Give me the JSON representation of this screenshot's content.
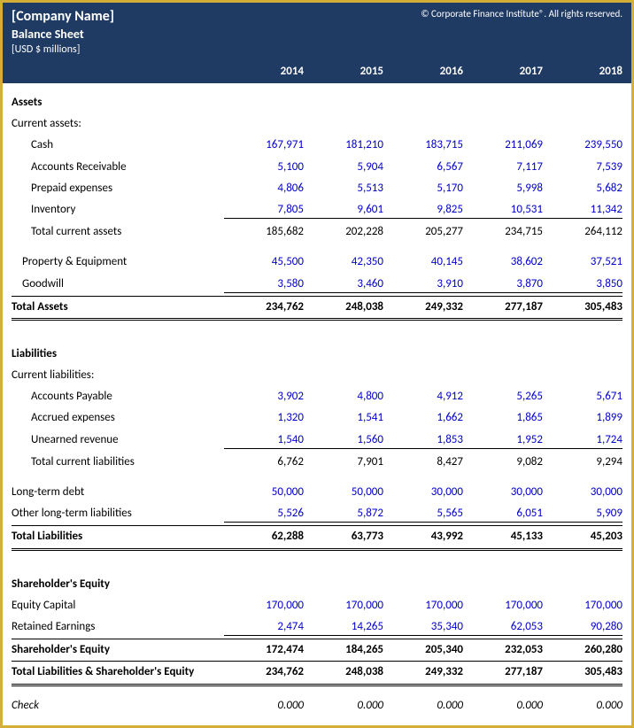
{
  "header": {
    "company": "[Company Name]",
    "title": "Balance Sheet",
    "unit": "[USD $ millions]",
    "copyright": "© Corporate Finance Institute®. All rights reserved."
  },
  "years": [
    "2014",
    "2015",
    "2016",
    "2017",
    "2018"
  ],
  "colors": {
    "header_bg": "#1f3a63",
    "header_text": "#ffffff",
    "border": "#d4af37",
    "data_blue": "#0000cc",
    "text": "#000000"
  },
  "assets": {
    "label": "Assets",
    "current_label": "Current assets:",
    "rows": [
      {
        "label": "Cash",
        "values": [
          "167,971",
          "181,210",
          "183,715",
          "211,069",
          "239,550"
        ],
        "blue": true
      },
      {
        "label": "Accounts Receivable",
        "values": [
          "5,100",
          "5,904",
          "6,567",
          "7,117",
          "7,539"
        ],
        "blue": true
      },
      {
        "label": "Prepaid expenses",
        "values": [
          "4,806",
          "5,513",
          "5,170",
          "5,998",
          "5,682"
        ],
        "blue": true
      },
      {
        "label": "Inventory",
        "values": [
          "7,805",
          "9,601",
          "9,825",
          "10,531",
          "11,342"
        ],
        "blue": true,
        "underline": true
      }
    ],
    "current_total": {
      "label": "Total current assets",
      "values": [
        "185,682",
        "202,228",
        "205,277",
        "234,715",
        "264,112"
      ]
    },
    "noncurrent": [
      {
        "label": "Property & Equipment",
        "values": [
          "45,500",
          "42,350",
          "40,145",
          "38,602",
          "37,521"
        ],
        "blue": true
      },
      {
        "label": "Goodwill",
        "values": [
          "3,580",
          "3,460",
          "3,910",
          "3,870",
          "3,850"
        ],
        "blue": true,
        "underline": true
      }
    ],
    "total": {
      "label": "Total Assets",
      "values": [
        "234,762",
        "248,038",
        "249,332",
        "277,187",
        "305,483"
      ]
    }
  },
  "liabilities": {
    "label": "Liabilities",
    "current_label": "Current liabilities:",
    "rows": [
      {
        "label": "Accounts Payable",
        "values": [
          "3,902",
          "4,800",
          "4,912",
          "5,265",
          "5,671"
        ],
        "blue": true
      },
      {
        "label": "Accrued expenses",
        "values": [
          "1,320",
          "1,541",
          "1,662",
          "1,865",
          "1,899"
        ],
        "blue": true
      },
      {
        "label": "Unearned revenue",
        "values": [
          "1,540",
          "1,560",
          "1,853",
          "1,952",
          "1,724"
        ],
        "blue": true,
        "underline": true
      }
    ],
    "current_total": {
      "label": "Total current liabilities",
      "values": [
        "6,762",
        "7,901",
        "8,427",
        "9,082",
        "9,294"
      ]
    },
    "longterm": [
      {
        "label": "Long-term debt",
        "values": [
          "50,000",
          "50,000",
          "30,000",
          "30,000",
          "30,000"
        ],
        "blue": true
      },
      {
        "label": "Other long-term liabilities",
        "values": [
          "5,526",
          "5,872",
          "5,565",
          "6,051",
          "5,909"
        ],
        "blue": true,
        "underline": true
      }
    ],
    "total": {
      "label": "Total Liabilities",
      "values": [
        "62,288",
        "63,773",
        "43,992",
        "45,133",
        "45,203"
      ]
    }
  },
  "equity": {
    "label": "Shareholder's Equity",
    "rows": [
      {
        "label": "Equity Capital",
        "values": [
          "170,000",
          "170,000",
          "170,000",
          "170,000",
          "170,000"
        ],
        "blue": true
      },
      {
        "label": "Retained Earnings",
        "values": [
          "2,474",
          "14,265",
          "35,340",
          "62,053",
          "90,280"
        ],
        "blue": true,
        "underline": true
      }
    ],
    "total": {
      "label": "Shareholder's Equity",
      "values": [
        "172,474",
        "184,265",
        "205,340",
        "232,053",
        "260,280"
      ]
    },
    "grand": {
      "label": "Total Liabilities & Shareholder's Equity",
      "values": [
        "234,762",
        "248,038",
        "249,332",
        "277,187",
        "305,483"
      ]
    }
  },
  "check": {
    "label": "Check",
    "values": [
      "0.000",
      "0.000",
      "0.000",
      "0.000",
      "0.000"
    ]
  }
}
